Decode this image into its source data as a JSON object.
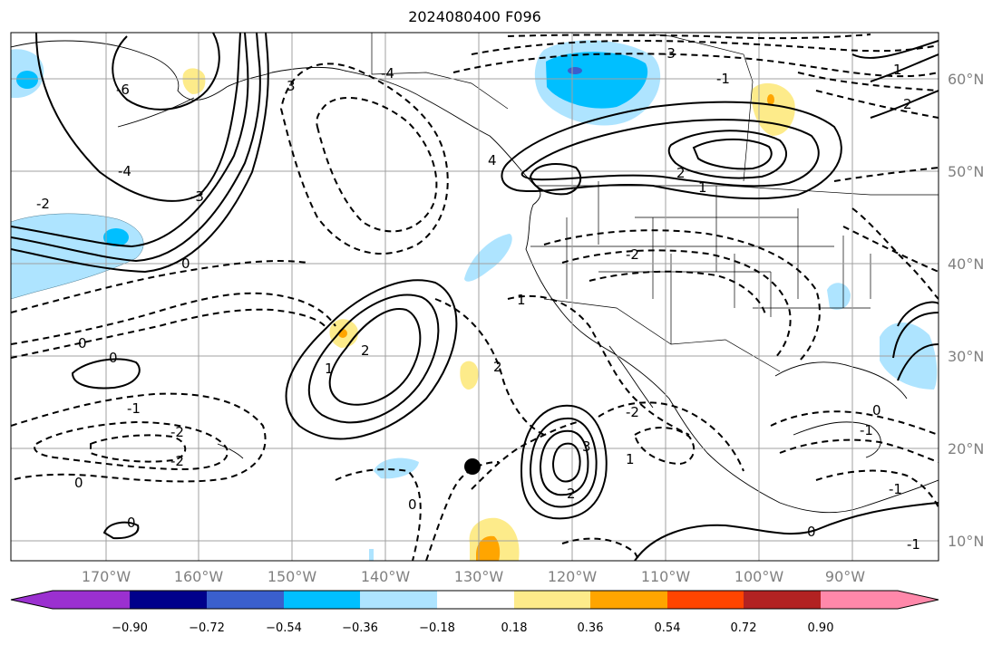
{
  "title": "2024080400 F096",
  "map": {
    "projection": "cylindrical",
    "lon_labels": [
      "170°W",
      "160°W",
      "150°W",
      "140°W",
      "130°W",
      "120°W",
      "110°W",
      "100°W",
      "90°W"
    ],
    "lat_labels": [
      "60°N",
      "50°N",
      "40°N",
      "30°N",
      "20°N",
      "10°N"
    ],
    "gridlines": true,
    "marker": {
      "lon": -130,
      "lat": 18,
      "shape": "filled-circle"
    }
  },
  "contour_labels": [
    {
      "text": "0"
    },
    {
      "text": "0"
    },
    {
      "text": "0"
    },
    {
      "text": "0"
    },
    {
      "text": "0"
    },
    {
      "text": "0"
    },
    {
      "text": "0"
    },
    {
      "text": "0"
    },
    {
      "text": "-1"
    },
    {
      "text": "-1"
    },
    {
      "text": "-1"
    },
    {
      "text": "-1"
    },
    {
      "text": "-1"
    },
    {
      "text": "-2"
    },
    {
      "text": "-2"
    },
    {
      "text": "-2"
    },
    {
      "text": "-2"
    },
    {
      "text": "-2"
    },
    {
      "text": "-3"
    },
    {
      "text": "-3"
    },
    {
      "text": "-4"
    },
    {
      "text": "-4"
    },
    {
      "text": "-6"
    },
    {
      "text": "1"
    },
    {
      "text": "1"
    },
    {
      "text": "1"
    },
    {
      "text": "1"
    },
    {
      "text": "1"
    },
    {
      "text": "2"
    },
    {
      "text": "2"
    },
    {
      "text": "2"
    },
    {
      "text": "2"
    },
    {
      "text": "2"
    },
    {
      "text": "3"
    },
    {
      "text": "3"
    },
    {
      "text": "4"
    }
  ],
  "colorbar": {
    "colors": [
      "#9b30d0",
      "#00008b",
      "#3a5fcd",
      "#00bfff",
      "#aee4ff",
      "#ffffff",
      "#fdeb8a",
      "#ffa500",
      "#ff4500",
      "#b22222",
      "#ff88aa"
    ],
    "tick_labels": [
      "−0.90",
      "−0.72",
      "−0.54",
      "−0.36",
      "−0.18",
      "0.18",
      "0.36",
      "0.54",
      "0.72",
      "0.90"
    ],
    "extend": "both"
  }
}
